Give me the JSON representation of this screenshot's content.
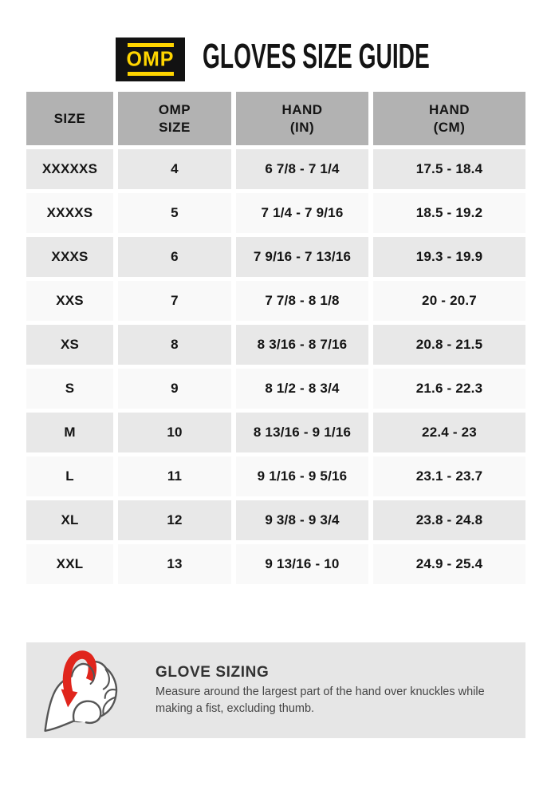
{
  "header": {
    "logo_text": "OMP",
    "title": "GLOVES SIZE GUIDE"
  },
  "table": {
    "columns": [
      {
        "lines": [
          "SIZE"
        ]
      },
      {
        "lines": [
          "OMP",
          "SIZE"
        ]
      },
      {
        "lines": [
          "HAND",
          "(IN)"
        ]
      },
      {
        "lines": [
          "HAND",
          "(CM)"
        ]
      }
    ],
    "rows": [
      [
        "XXXXXS",
        "4",
        "6 7/8 - 7 1/4",
        "17.5 - 18.4"
      ],
      [
        "XXXXS",
        "5",
        "7 1/4 - 7 9/16",
        "18.5 - 19.2"
      ],
      [
        "XXXS",
        "6",
        "7 9/16 - 7 13/16",
        "19.3 - 19.9"
      ],
      [
        "XXS",
        "7",
        "7 7/8 - 8 1/8",
        "20 - 20.7"
      ],
      [
        "XS",
        "8",
        "8 3/16 - 8 7/16",
        "20.8 - 21.5"
      ],
      [
        "S",
        "9",
        "8 1/2 - 8 3/4",
        "21.6 - 22.3"
      ],
      [
        "M",
        "10",
        "8 13/16 - 9 1/16",
        "22.4 - 23"
      ],
      [
        "L",
        "11",
        "9 1/16 - 9 5/16",
        "23.1 - 23.7"
      ],
      [
        "XL",
        "12",
        "9 3/8 - 9 3/4",
        "23.8 - 24.8"
      ],
      [
        "XXL",
        "13",
        "9 13/16 - 10",
        "24.9 - 25.4"
      ]
    ]
  },
  "sizing_note": {
    "title": "GLOVE SIZING",
    "body": "Measure around the largest part of the hand over knuckles while making a fist, excluding thumb.",
    "icon": "fist-with-measuring-loop-icon"
  },
  "colors": {
    "header_bg": "#b2b2b2",
    "row_odd_bg": "#e8e8e8",
    "row_even_bg": "#f9f9f9",
    "panel_bg": "#e6e6e6",
    "logo_bg": "#121212",
    "logo_yellow": "#ffd500",
    "accent_red": "#e0251c",
    "text_dark": "#141414",
    "note_text": "#454545"
  }
}
